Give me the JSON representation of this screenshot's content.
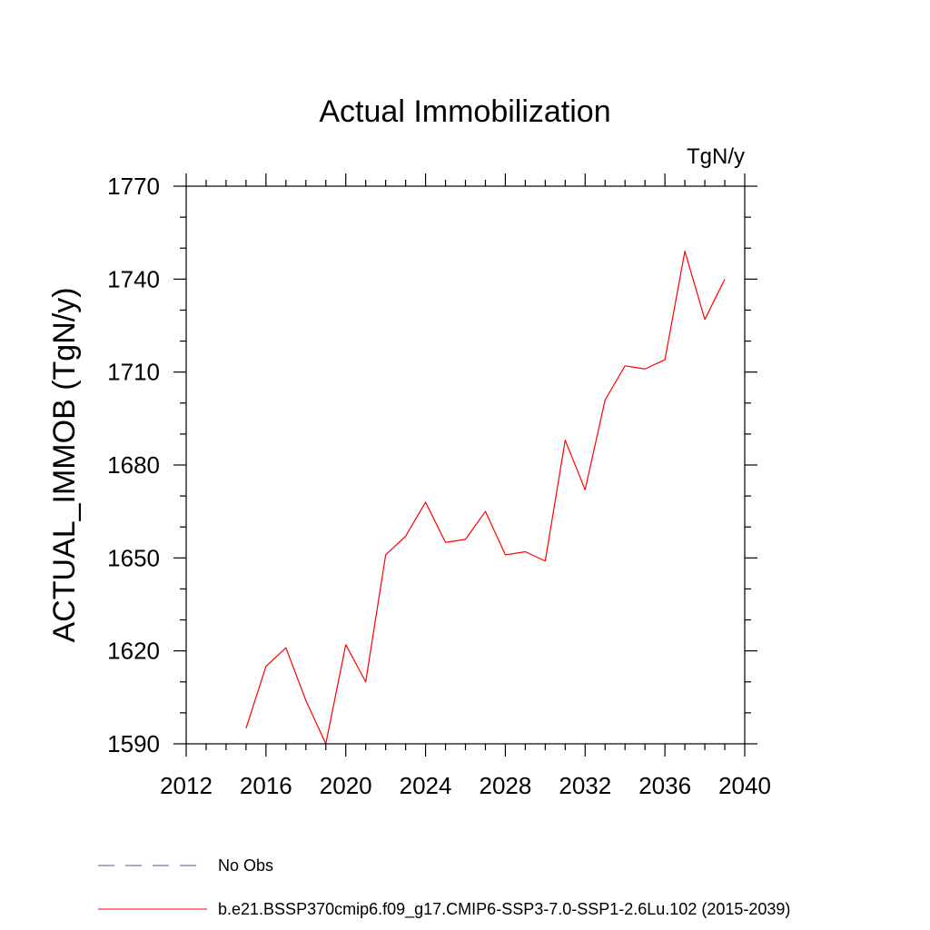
{
  "chart_data": {
    "type": "line",
    "title": "Actual Immobilization",
    "units": "TgN/y",
    "xlabel": "",
    "ylabel": "ACTUAL_IMMOB  (TgN/y)",
    "xlim": [
      2012,
      2040
    ],
    "ylim": [
      1590,
      1770
    ],
    "x_ticks": [
      2012,
      2016,
      2020,
      2024,
      2028,
      2032,
      2036,
      2040
    ],
    "y_ticks": [
      1590,
      1620,
      1650,
      1680,
      1710,
      1740,
      1770
    ],
    "x_tick_labels": [
      "2012",
      "2016",
      "2020",
      "2024",
      "2028",
      "2032",
      "2036",
      "2040"
    ],
    "y_tick_labels": [
      "1590",
      "1620",
      "1650",
      "1680",
      "1710",
      "1740",
      "1770"
    ],
    "grid": false,
    "legend_position": "bottom",
    "series": [
      {
        "name": "b.e21.BSSP370cmip6.f09_g17.CMIP6-SSP3-7.0-SSP1-2.6Lu.102 (2015-2039)",
        "color": "#ff0000",
        "style": "solid",
        "x": [
          2015,
          2016,
          2017,
          2018,
          2019,
          2020,
          2021,
          2022,
          2023,
          2024,
          2025,
          2026,
          2027,
          2028,
          2029,
          2030,
          2031,
          2032,
          2033,
          2034,
          2035,
          2036,
          2037,
          2038,
          2039
        ],
        "values": [
          1595,
          1615,
          1621,
          1604,
          1590,
          1622,
          1610,
          1651,
          1657,
          1668,
          1655,
          1656,
          1665,
          1651,
          1652,
          1649,
          1688,
          1672,
          1701,
          1712,
          1711,
          1714,
          1749,
          1727,
          1740
        ]
      }
    ],
    "legend": [
      {
        "label": "No Obs",
        "color": "#5a4fa0",
        "style": "dashed"
      },
      {
        "label": "b.e21.BSSP370cmip6.f09_g17.CMIP6-SSP3-7.0-SSP1-2.6Lu.102 (2015-2039)",
        "color": "#ff0000",
        "style": "solid"
      }
    ]
  }
}
